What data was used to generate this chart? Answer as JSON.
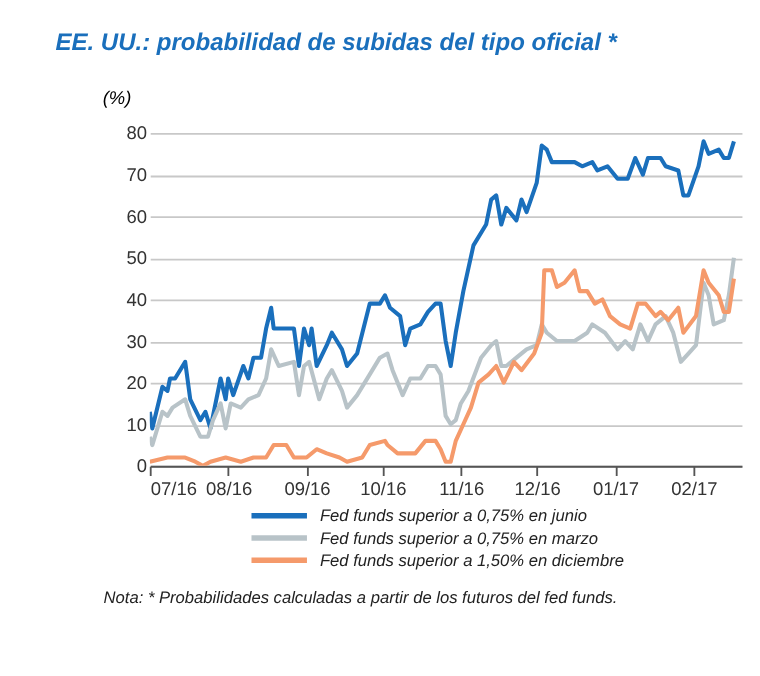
{
  "chart_data": {
    "type": "line",
    "title": "EE. UU.: probabilidad de subidas del tipo oficial *",
    "ylabel": "(%)",
    "xlim": [
      "2016-07-01",
      "2017-02-20"
    ],
    "xticks": [
      {
        "value": "2016-07-01",
        "label": "07/16"
      },
      {
        "value": "2016-08-01",
        "label": "08/16"
      },
      {
        "value": "2016-09-01",
        "label": "09/16"
      },
      {
        "value": "2016-10-01",
        "label": "10/16"
      },
      {
        "value": "2016-11-01",
        "label": "11/16"
      },
      {
        "value": "2016-12-01",
        "label": "12/16"
      },
      {
        "value": "2017-01-01",
        "label": "01/17"
      },
      {
        "value": "2017-02-01",
        "label": "02/17"
      }
    ],
    "ylim": [
      0,
      80
    ],
    "yticks": [
      0,
      10,
      20,
      30,
      40,
      50,
      60,
      70,
      80
    ],
    "grid": "y",
    "legend": "bottom",
    "line_style": "solid",
    "marker": "none",
    "series": [
      {
        "name": "Fed funds superior a 0,75% en junio",
        "color": "#1a6fbc",
        "x": [
          "2016-07-01",
          "2016-07-02",
          "2016-07-06",
          "2016-07-08",
          "2016-07-09",
          "2016-07-11",
          "2016-07-15",
          "2016-07-17",
          "2016-07-21",
          "2016-07-23",
          "2016-07-25",
          "2016-07-29",
          "2016-07-31",
          "2016-08-01",
          "2016-08-03",
          "2016-08-07",
          "2016-08-09",
          "2016-08-11",
          "2016-08-14",
          "2016-08-16",
          "2016-08-18",
          "2016-08-19",
          "2016-08-27",
          "2016-08-29",
          "2016-08-31",
          "2016-09-02",
          "2016-09-03",
          "2016-09-05",
          "2016-09-09",
          "2016-09-11",
          "2016-09-15",
          "2016-09-17",
          "2016-09-21",
          "2016-09-26",
          "2016-09-30",
          "2016-10-02",
          "2016-10-04",
          "2016-10-08",
          "2016-10-10",
          "2016-10-12",
          "2016-10-16",
          "2016-10-19",
          "2016-10-22",
          "2016-10-24",
          "2016-10-26",
          "2016-10-28",
          "2016-10-30",
          "2016-11-02",
          "2016-11-06",
          "2016-11-11",
          "2016-11-13",
          "2016-11-15",
          "2016-11-17",
          "2016-11-19",
          "2016-11-23",
          "2016-11-25",
          "2016-11-27",
          "2016-12-01",
          "2016-12-03",
          "2016-12-05",
          "2016-12-07",
          "2016-12-16",
          "2016-12-19",
          "2016-12-23",
          "2016-12-25",
          "2016-12-29",
          "2017-01-02",
          "2017-01-06",
          "2017-01-09",
          "2017-01-12",
          "2017-01-14",
          "2017-01-19",
          "2017-01-21",
          "2017-01-26",
          "2017-01-28",
          "2017-01-30",
          "2017-02-03",
          "2017-02-05",
          "2017-02-07",
          "2017-02-11",
          "2017-02-13",
          "2017-02-15",
          "2017-02-17"
        ],
        "values": [
          13,
          9,
          19,
          18,
          21,
          21,
          25,
          16,
          11,
          13,
          9,
          21,
          16,
          21,
          17,
          24,
          21,
          26,
          26,
          33,
          38,
          33,
          33,
          24,
          33,
          29,
          33,
          24,
          29,
          32,
          28,
          24,
          27,
          39,
          39,
          41,
          38,
          36,
          29,
          33,
          34,
          37,
          39,
          39,
          30,
          24,
          32,
          42,
          53,
          58,
          64,
          65,
          58,
          62,
          59,
          64,
          61,
          68,
          77,
          76,
          73,
          73,
          72,
          73,
          71,
          72,
          69,
          69,
          74,
          70,
          74,
          74,
          72,
          71,
          65,
          65,
          72,
          78,
          75,
          76,
          74,
          74,
          78
        ]
      },
      {
        "name": "Fed funds superior a 0,75% en marzo",
        "color": "#b8c3c8",
        "x": [
          "2016-07-01",
          "2016-07-02",
          "2016-07-06",
          "2016-07-08",
          "2016-07-10",
          "2016-07-15",
          "2016-07-17",
          "2016-07-21",
          "2016-07-24",
          "2016-07-26",
          "2016-07-29",
          "2016-07-31",
          "2016-08-02",
          "2016-08-06",
          "2016-08-09",
          "2016-08-13",
          "2016-08-16",
          "2016-08-18",
          "2016-08-21",
          "2016-08-27",
          "2016-08-29",
          "2016-08-31",
          "2016-09-02",
          "2016-09-06",
          "2016-09-09",
          "2016-09-11",
          "2016-09-15",
          "2016-09-17",
          "2016-09-21",
          "2016-09-26",
          "2016-09-30",
          "2016-10-03",
          "2016-10-05",
          "2016-10-09",
          "2016-10-12",
          "2016-10-16",
          "2016-10-19",
          "2016-10-22",
          "2016-10-24",
          "2016-10-26",
          "2016-10-28",
          "2016-10-30",
          "2016-11-01",
          "2016-11-04",
          "2016-11-09",
          "2016-11-13",
          "2016-11-15",
          "2016-11-17",
          "2016-11-19",
          "2016-11-23",
          "2016-11-27",
          "2016-12-01",
          "2016-12-03",
          "2016-12-05",
          "2016-12-09",
          "2016-12-16",
          "2016-12-21",
          "2016-12-23",
          "2016-12-28",
          "2017-01-02",
          "2017-01-05",
          "2017-01-08",
          "2017-01-11",
          "2017-01-14",
          "2017-01-17",
          "2017-01-21",
          "2017-01-24",
          "2017-01-27",
          "2017-01-30",
          "2017-02-02",
          "2017-02-05",
          "2017-02-07",
          "2017-02-09",
          "2017-02-13",
          "2017-02-15",
          "2017-02-17"
        ],
        "values": [
          7,
          5,
          13,
          12,
          14,
          16,
          12,
          7,
          7,
          11,
          15,
          9,
          15,
          14,
          16,
          17,
          21,
          28,
          24,
          25,
          17,
          24,
          25,
          16,
          21,
          23,
          18,
          14,
          17,
          22,
          26,
          27,
          23,
          17,
          21,
          21,
          24,
          24,
          22,
          12,
          10,
          11,
          15,
          18,
          26,
          29,
          30,
          24,
          24,
          26,
          28,
          29,
          34,
          32,
          30,
          30,
          32,
          34,
          32,
          28,
          30,
          28,
          34,
          30,
          34,
          36,
          32,
          25,
          27,
          29,
          44,
          41,
          34,
          35,
          41,
          50
        ]
      },
      {
        "name": "Fed funds superior a 1,50% en diciembre",
        "color": "#f59a6b",
        "x": [
          "2016-07-01",
          "2016-07-08",
          "2016-07-15",
          "2016-07-19",
          "2016-07-22",
          "2016-07-25",
          "2016-07-31",
          "2016-08-06",
          "2016-08-11",
          "2016-08-16",
          "2016-08-19",
          "2016-08-24",
          "2016-08-27",
          "2016-09-01",
          "2016-09-05",
          "2016-09-09",
          "2016-09-14",
          "2016-09-17",
          "2016-09-23",
          "2016-09-26",
          "2016-10-02",
          "2016-10-03",
          "2016-10-07",
          "2016-10-10",
          "2016-10-14",
          "2016-10-18",
          "2016-10-22",
          "2016-10-24",
          "2016-10-26",
          "2016-10-28",
          "2016-10-30",
          "2016-11-02",
          "2016-11-05",
          "2016-11-08",
          "2016-11-12",
          "2016-11-15",
          "2016-11-18",
          "2016-11-22",
          "2016-11-25",
          "2016-11-30",
          "2016-12-03",
          "2016-12-04",
          "2016-12-07",
          "2016-12-09",
          "2016-12-12",
          "2016-12-16",
          "2016-12-18",
          "2016-12-21",
          "2016-12-24",
          "2016-12-27",
          "2016-12-30",
          "2017-01-03",
          "2017-01-07",
          "2017-01-10",
          "2017-01-13",
          "2017-01-17",
          "2017-01-19",
          "2017-01-22",
          "2017-01-26",
          "2017-01-28",
          "2017-02-02",
          "2017-02-05",
          "2017-02-07",
          "2017-02-11",
          "2017-02-13",
          "2017-02-15",
          "2017-02-17"
        ],
        "values": [
          1,
          2,
          2,
          1,
          0,
          1,
          2,
          1,
          2,
          2,
          5,
          5,
          2,
          2,
          4,
          3,
          2,
          1,
          2,
          5,
          6,
          5,
          3,
          3,
          3,
          6,
          6,
          4,
          1,
          1,
          6,
          10,
          14,
          20,
          22,
          24,
          20,
          25,
          23,
          27,
          32,
          47,
          47,
          43,
          44,
          47,
          42,
          42,
          39,
          40,
          36,
          34,
          33,
          39,
          39,
          36,
          37,
          35,
          38,
          32,
          36,
          47,
          44,
          41,
          37,
          37,
          45
        ]
      }
    ],
    "annotations": [
      "Nota: * Probabilidades calculadas a partir de los futuros del fed funds."
    ]
  }
}
